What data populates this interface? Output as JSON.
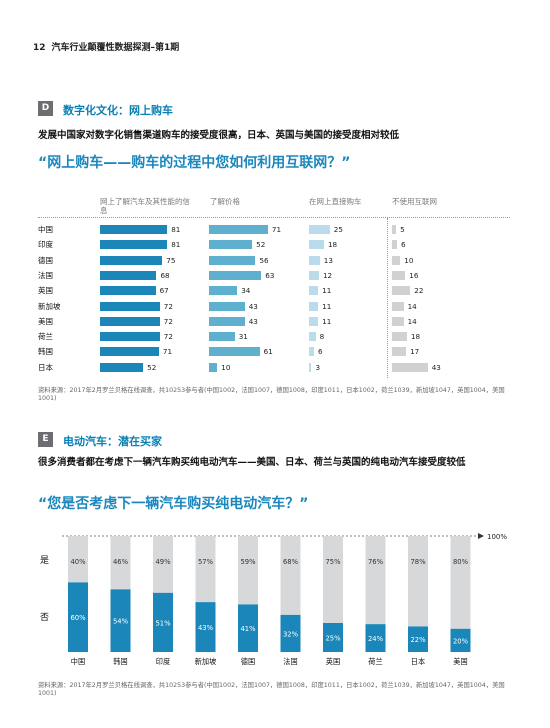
{
  "header": {
    "page_number": "12",
    "title": "汽车行业颠覆性数据探测–第1期"
  },
  "section_d": {
    "badge": "D",
    "title": "数字化文化：网上购车",
    "subtitle": "发展中国家对数字化销售渠道购车的接受度很高，日本、英国与美国的接受度相对较低",
    "quote": "“网上购车——购车的过程中您如何利用互联网？”",
    "columns": [
      "网上了解汽车及其性能的信息",
      "了解价格",
      "在网上直接购车",
      "不使用互联网"
    ],
    "column_colors": [
      "#1c86b8",
      "#5fb0cf",
      "#b9dbea",
      "#d0d1d3"
    ],
    "rows": [
      {
        "country": "中国",
        "values": [
          81,
          71,
          25,
          5
        ]
      },
      {
        "country": "印度",
        "values": [
          81,
          52,
          18,
          6
        ]
      },
      {
        "country": "德国",
        "values": [
          75,
          56,
          13,
          10
        ]
      },
      {
        "country": "法国",
        "values": [
          68,
          63,
          12,
          16
        ]
      },
      {
        "country": "英国",
        "values": [
          67,
          34,
          11,
          22
        ]
      },
      {
        "country": "新加坡",
        "values": [
          72,
          43,
          11,
          14
        ]
      },
      {
        "country": "美国",
        "values": [
          72,
          43,
          11,
          14
        ]
      },
      {
        "country": "荷兰",
        "values": [
          72,
          31,
          8,
          18
        ]
      },
      {
        "country": "韩国",
        "values": [
          71,
          61,
          6,
          17
        ]
      },
      {
        "country": "日本",
        "values": [
          52,
          10,
          3,
          43
        ]
      }
    ],
    "source": "资料来源：2017年2月罗兰贝格在线调查，共10253参与者(中国1002，法国1007，德国1008，印度1011，日本1002，荷兰1039，新加坡1047，英国1004，美国1001)"
  },
  "section_e": {
    "badge": "E",
    "title": "电动汽车：潜在买家",
    "subtitle": "很多消费者都在考虑下一辆汽车购买纯电动汽车——美国、日本、荷兰与英国的纯电动汽车接受度较低",
    "quote": "“您是否考虑下一辆汽车购买纯电动汽车？”",
    "yes_label": "是",
    "no_label": "否",
    "hundred_label": "100%",
    "source": "资料来源：2017年2月罗兰贝格在线调查，共10253参与者(中国1002，法国1007，德国1008，印度1011，日本1002，荷兰1039，新加坡1047，英国1004，美国1001)"
  },
  "chart_data": {
    "type": "bar",
    "title": "“您是否考虑下一辆汽车购买纯电动汽车？”",
    "categories": [
      "中国",
      "韩国",
      "印度",
      "新加坡",
      "德国",
      "法国",
      "英国",
      "荷兰",
      "日本",
      "美国"
    ],
    "series": [
      {
        "name": "否",
        "values": [
          40,
          46,
          49,
          57,
          59,
          68,
          75,
          76,
          78,
          80
        ],
        "labels": [
          "40%",
          "46%",
          "49%",
          "57%",
          "59%",
          "68%",
          "75%",
          "76%",
          "78%",
          "80%"
        ],
        "color": "#d7d8da"
      },
      {
        "name": "是",
        "values": [
          60,
          54,
          51,
          43,
          41,
          32,
          25,
          24,
          22,
          20
        ],
        "labels": [
          "60%",
          "54%",
          "51%",
          "43%",
          "41%",
          "32%",
          "25%",
          "24%",
          "22%",
          "20%"
        ],
        "color": "#1a86b9"
      }
    ],
    "stacked": true,
    "ylim": [
      0,
      100
    ]
  }
}
